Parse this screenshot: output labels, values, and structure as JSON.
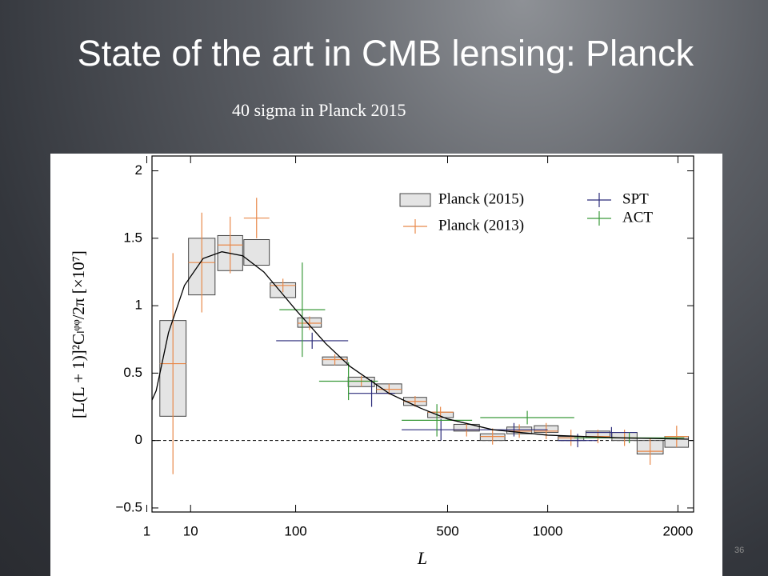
{
  "slide_title": "State of the art in CMB lensing: Planck",
  "subtitle": "40 sigma in Planck 2015",
  "page_number": "36",
  "chart_data": {
    "type": "errorbar",
    "xlabel": "L",
    "ylabel": "[L(L + 1)]²Cₗᵠᵠ/2π [×10⁷]",
    "xscale": "power",
    "xpower": 0.38,
    "xlim": [
      1.5,
      2150
    ],
    "xticks": [
      1,
      10,
      100,
      500,
      1000,
      2000
    ],
    "ylim": [
      -0.53,
      2.11
    ],
    "yticks": [
      {
        "value": -0.5,
        "label": "−0.5"
      },
      0,
      0.5,
      1,
      1.5,
      2
    ],
    "hline": 0,
    "legend": "upper right",
    "series": [
      {
        "name": "Planck (2015)",
        "style": "box",
        "color": "#444444",
        "fill": "#e4e4e4",
        "x_low": [
          2.5,
          9.3,
          22.5,
          41,
          67,
          103,
          144,
          196,
          265,
          344,
          425,
          525,
          640,
          770,
          920,
          1065,
          1250,
          1440,
          1640,
          1880
        ],
        "x_high": [
          8.5,
          21,
          40,
          66,
          100,
          142,
          194,
          260,
          338,
          421,
          523,
          636,
          760,
          906,
          1065,
          1235,
          1425,
          1640,
          1865,
          2100
        ],
        "values": [
          0.535,
          1.29,
          1.39,
          1.395,
          1.115,
          0.875,
          0.59,
          0.435,
          0.385,
          0.29,
          0.19,
          0.095,
          0.025,
          0.075,
          0.085,
          0.015,
          0.045,
          0.03,
          -0.05,
          -0.01
        ],
        "errors": [
          0.355,
          0.21,
          0.13,
          0.095,
          0.055,
          0.035,
          0.03,
          0.035,
          0.035,
          0.03,
          0.02,
          0.025,
          0.025,
          0.025,
          0.025,
          0.015,
          0.025,
          0.03,
          0.05,
          0.04
        ]
      },
      {
        "name": "Planck (2013)",
        "style": "cross",
        "color": "#e8894a",
        "x_low": [
          2.5,
          9.3,
          22.5,
          41,
          67,
          103,
          144,
          196,
          265,
          344,
          425,
          525,
          640,
          770,
          920,
          1065,
          1250,
          1440,
          1640,
          1880
        ],
        "x_high": [
          8.5,
          21,
          40,
          66,
          100,
          142,
          194,
          260,
          338,
          421,
          523,
          636,
          760,
          906,
          1065,
          1235,
          1425,
          1640,
          1865,
          2100
        ],
        "values": [
          0.57,
          1.32,
          1.45,
          1.65,
          1.15,
          0.87,
          0.6,
          0.44,
          0.38,
          0.29,
          0.21,
          0.08,
          0.03,
          0.07,
          0.07,
          0.02,
          0.03,
          0.02,
          -0.08,
          0.03
        ],
        "errors": [
          0.82,
          0.37,
          0.21,
          0.15,
          0.05,
          0.05,
          0.04,
          0.04,
          0.04,
          0.04,
          0.04,
          0.05,
          0.06,
          0.05,
          0.06,
          0.06,
          0.05,
          0.06,
          0.1,
          0.08
        ]
      },
      {
        "name": "SPT",
        "style": "cross",
        "color": "#2b2b7a",
        "x_low": [
          74,
          196,
          338,
          640,
          1065,
          1250
        ],
        "x_high": [
          196,
          318,
          640,
          1000,
          1330,
          1640
        ],
        "values": [
          0.74,
          0.35,
          0.08,
          0.08,
          0,
          0.06
        ],
        "errors": [
          0.06,
          0.1,
          0.08,
          0.05,
          0.05,
          0.04
        ]
      },
      {
        "name": "ACT",
        "style": "cross",
        "color": "#3a9a3a",
        "x_low": [
          78,
          138,
          338,
          640,
          1170
        ],
        "x_high": [
          149,
          269,
          603,
          1170,
          2060
        ],
        "values": [
          0.97,
          0.44,
          0.15,
          0.17,
          0.02
        ],
        "errors": [
          0.35,
          0.14,
          0.12,
          0.05,
          0.04
        ]
      }
    ],
    "curve": {
      "color": "#000000",
      "x": [
        1.5,
        2,
        4,
        8,
        15,
        25,
        40,
        60,
        80,
        100,
        150,
        200,
        300,
        400,
        500,
        700,
        1000,
        1500,
        2100
      ],
      "y": [
        0.3,
        0.37,
        0.8,
        1.15,
        1.35,
        1.4,
        1.37,
        1.25,
        1.1,
        0.97,
        0.72,
        0.55,
        0.35,
        0.24,
        0.16,
        0.08,
        0.04,
        0.02,
        0.01
      ]
    }
  }
}
